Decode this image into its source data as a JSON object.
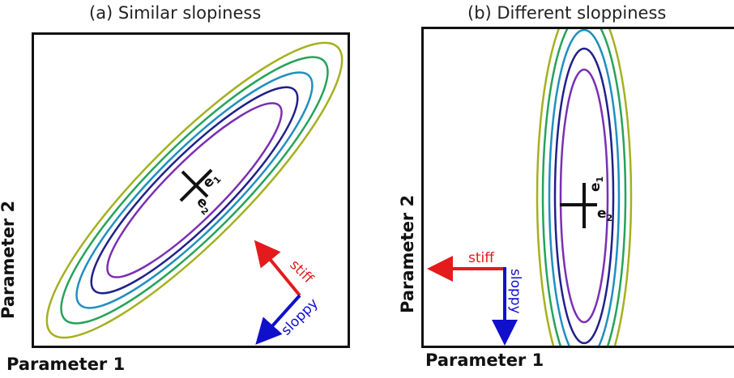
{
  "panel_a": {
    "title": "(a) Similar slopiness",
    "xlabel": "Parameter 1",
    "ylabel": "Parameter 2",
    "eigen_labels": {
      "e1": "e",
      "e1_sub": "1",
      "e2": "e",
      "e2_sub": "2"
    },
    "arrows": {
      "stiff": "stiff",
      "sloppy": "sloppy"
    }
  },
  "panel_b": {
    "title": "(b) Different sloppiness",
    "xlabel": "Parameter 1",
    "ylabel": "Parameter 2",
    "eigen_labels": {
      "e1": "e",
      "e1_sub": "1",
      "e2": "e",
      "e2_sub": "2"
    },
    "arrows": {
      "stiff": "stiff",
      "sloppy": "sloppy"
    }
  },
  "colors": {
    "contour_1": "#7a2fb3",
    "contour_2": "#20208c",
    "contour_3": "#1f8fc0",
    "contour_4": "#25a35a",
    "contour_5": "#a5b020",
    "stiff": "#e41a1c",
    "sloppy": "#1010cc",
    "axes": "#111111"
  }
}
